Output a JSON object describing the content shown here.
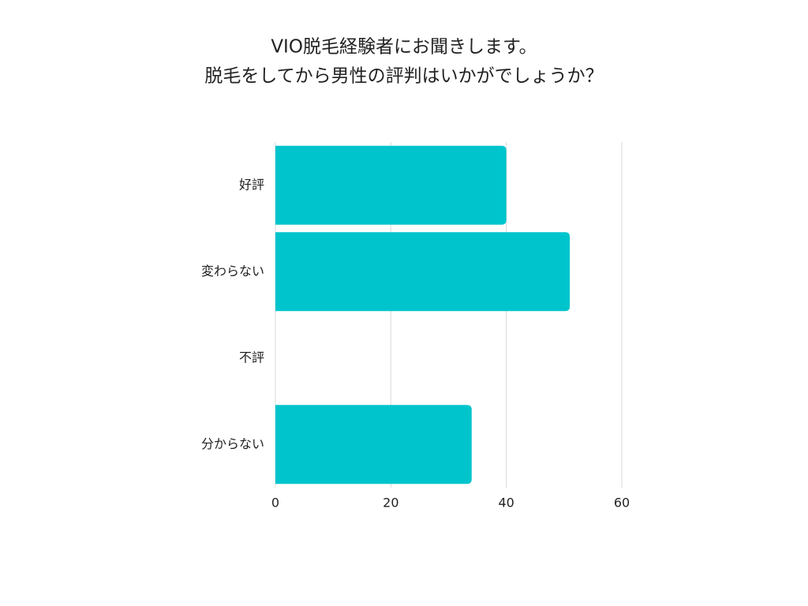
{
  "chart_data": {
    "type": "bar",
    "orientation": "horizontal",
    "title": [
      "VIO脱毛経験者にお聞きします。",
      "脱毛をしてから男性の評判はいかがでしょうか？"
    ],
    "categories": [
      "好評",
      "変わらない",
      "不評",
      "分からない"
    ],
    "values": [
      40,
      51,
      0,
      34
    ],
    "color": "#00c4cc",
    "xlim": [
      0,
      60
    ],
    "xticks": [
      0,
      20,
      40,
      60
    ],
    "grid": true
  }
}
